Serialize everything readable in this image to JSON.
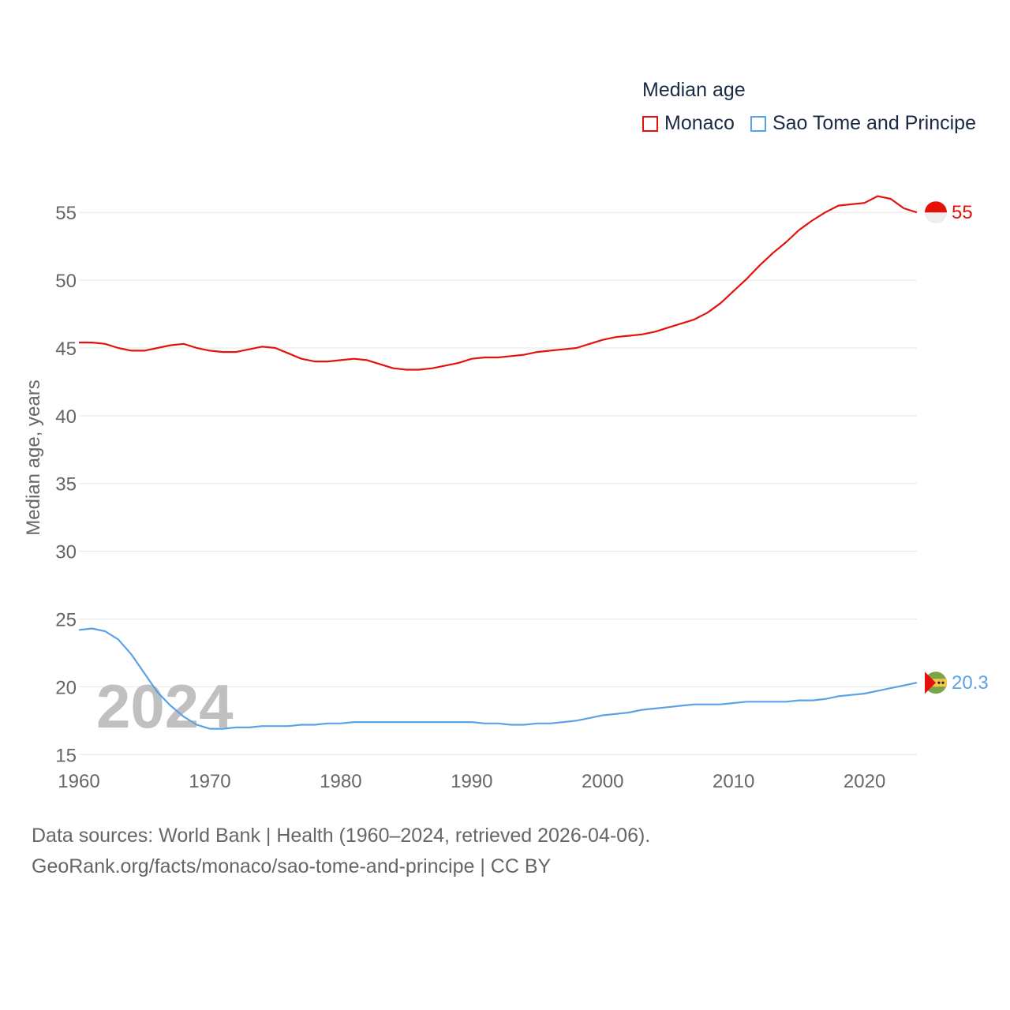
{
  "legend": {
    "title": "Median age",
    "series": [
      {
        "name": "Monaco",
        "color": "#e3120b"
      },
      {
        "name": "Sao Tome and Principe",
        "color": "#5aa2e6"
      }
    ]
  },
  "footer": {
    "line1": "Data sources: World Bank | Health (1960–2024, retrieved 2026-04-06).",
    "line2": "GeoRank.org/facts/monaco/sao-tome-and-principe | CC BY"
  },
  "chart_data": {
    "type": "line",
    "title": "Median age",
    "xlabel": "",
    "ylabel": "Median age, years",
    "xlim": [
      1960,
      2024
    ],
    "ylim": [
      15,
      57
    ],
    "xticks": [
      1960,
      1970,
      1980,
      1990,
      2000,
      2010,
      2020
    ],
    "yticks": [
      15,
      20,
      25,
      30,
      35,
      40,
      45,
      50,
      55
    ],
    "grid": true,
    "year_label": "2024",
    "x": [
      1960,
      1961,
      1962,
      1963,
      1964,
      1965,
      1966,
      1967,
      1968,
      1969,
      1970,
      1971,
      1972,
      1973,
      1974,
      1975,
      1976,
      1977,
      1978,
      1979,
      1980,
      1981,
      1982,
      1983,
      1984,
      1985,
      1986,
      1987,
      1988,
      1989,
      1990,
      1991,
      1992,
      1993,
      1994,
      1995,
      1996,
      1997,
      1998,
      1999,
      2000,
      2001,
      2002,
      2003,
      2004,
      2005,
      2006,
      2007,
      2008,
      2009,
      2010,
      2011,
      2012,
      2013,
      2014,
      2015,
      2016,
      2017,
      2018,
      2019,
      2020,
      2021,
      2022,
      2023,
      2024
    ],
    "series": [
      {
        "name": "Monaco",
        "color": "#e3120b",
        "end_label": "55",
        "values": [
          45.4,
          45.4,
          45.3,
          45.0,
          44.8,
          44.8,
          45.0,
          45.2,
          45.3,
          45.0,
          44.8,
          44.7,
          44.7,
          44.9,
          45.1,
          45.0,
          44.6,
          44.2,
          44.0,
          44.0,
          44.1,
          44.2,
          44.1,
          43.8,
          43.5,
          43.4,
          43.4,
          43.5,
          43.7,
          43.9,
          44.2,
          44.3,
          44.3,
          44.4,
          44.5,
          44.7,
          44.8,
          44.9,
          45.0,
          45.3,
          45.6,
          45.8,
          45.9,
          46.0,
          46.2,
          46.5,
          46.8,
          47.1,
          47.6,
          48.3,
          49.2,
          50.1,
          51.1,
          52.0,
          52.8,
          53.7,
          54.4,
          55.0,
          55.5,
          55.6,
          55.7,
          56.2,
          56.0,
          55.3,
          55.0
        ]
      },
      {
        "name": "Sao Tome and Principe",
        "color": "#5aa2e6",
        "end_label": "20.3",
        "values": [
          24.2,
          24.3,
          24.1,
          23.5,
          22.4,
          21.0,
          19.6,
          18.6,
          17.8,
          17.2,
          16.9,
          16.9,
          17.0,
          17.0,
          17.1,
          17.1,
          17.1,
          17.2,
          17.2,
          17.3,
          17.3,
          17.4,
          17.4,
          17.4,
          17.4,
          17.4,
          17.4,
          17.4,
          17.4,
          17.4,
          17.4,
          17.3,
          17.3,
          17.2,
          17.2,
          17.3,
          17.3,
          17.4,
          17.5,
          17.7,
          17.9,
          18.0,
          18.1,
          18.3,
          18.4,
          18.5,
          18.6,
          18.7,
          18.7,
          18.7,
          18.8,
          18.9,
          18.9,
          18.9,
          18.9,
          19.0,
          19.0,
          19.1,
          19.3,
          19.4,
          19.5,
          19.7,
          19.9,
          20.1,
          20.3
        ]
      }
    ]
  }
}
